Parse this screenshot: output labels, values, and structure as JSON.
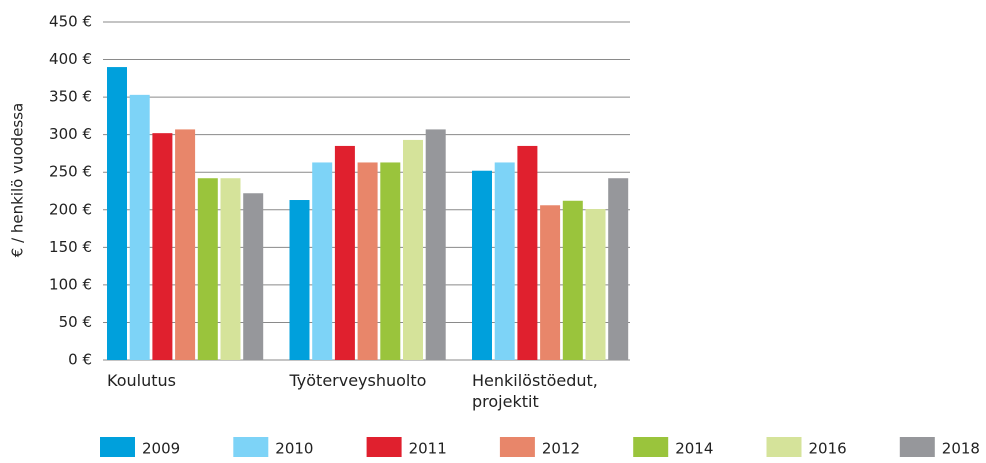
{
  "chart_data": {
    "type": "bar",
    "y_label": "€ / henkilö vuodessa",
    "categories": [
      "Koulutus",
      "Työterveyshuolto",
      "Henkilöstöedut, projektit"
    ],
    "series": [
      {
        "name": "2009",
        "color": "#00a0dc",
        "values": [
          390,
          213,
          252
        ]
      },
      {
        "name": "2010",
        "color": "#7dd3f7",
        "values": [
          353,
          263,
          263
        ]
      },
      {
        "name": "2011",
        "color": "#e0202e",
        "values": [
          302,
          285,
          285
        ]
      },
      {
        "name": "2012",
        "color": "#e8866a",
        "values": [
          307,
          263,
          206
        ]
      },
      {
        "name": "2014",
        "color": "#9ac43c",
        "values": [
          242,
          263,
          212
        ]
      },
      {
        "name": "2016",
        "color": "#d5e39a",
        "values": [
          242,
          293,
          201
        ]
      },
      {
        "name": "2018",
        "color": "#96979b",
        "values": [
          222,
          307,
          242
        ]
      }
    ],
    "ylim": [
      0,
      450
    ],
    "yticks": [
      {
        "value": 0,
        "label": "0 €"
      },
      {
        "value": 50,
        "label": "50 €"
      },
      {
        "value": 100,
        "label": "100 €"
      },
      {
        "value": 150,
        "label": "150 €"
      },
      {
        "value": 200,
        "label": "200 €"
      },
      {
        "value": 250,
        "label": "250 €"
      },
      {
        "value": 300,
        "label": "300 €"
      },
      {
        "value": 350,
        "label": "350 €"
      },
      {
        "value": 400,
        "label": "400 €"
      },
      {
        "value": 450,
        "label": "450 €"
      }
    ],
    "grid": true,
    "legend": "bottom"
  }
}
